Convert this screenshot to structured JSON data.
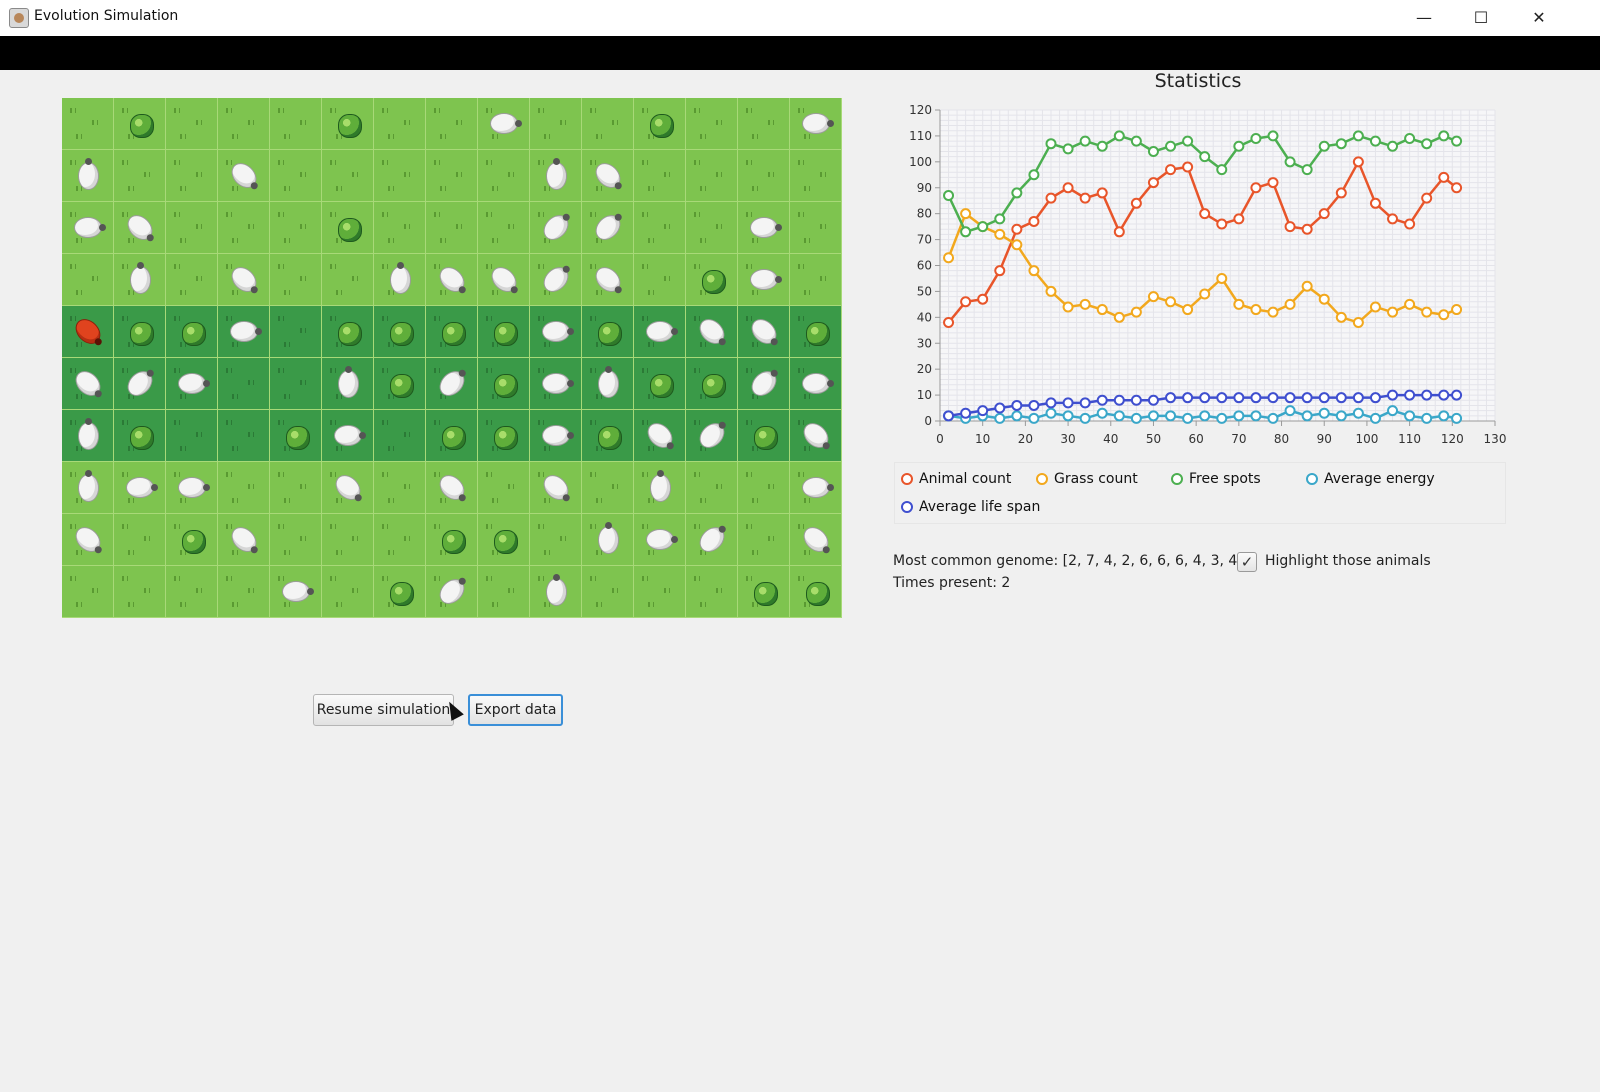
{
  "window": {
    "title": "Evolution Simulation",
    "minimize_glyph": "—",
    "maximize_glyph": "☐",
    "close_glyph": "✕",
    "icon": "app-icon"
  },
  "map": {
    "legend_note": "",
    "rows": [
      [
        "S",
        "B",
        "S",
        "S",
        "S",
        "B",
        "S",
        "S",
        "Sh",
        "S",
        "S",
        "B",
        "S",
        "S",
        "Sh"
      ],
      [
        "Sv",
        "S",
        "S",
        "Sd1",
        "S",
        "S",
        "S",
        "S",
        "S",
        "Sv",
        "Sd1",
        "S",
        "S",
        "S",
        "S"
      ],
      [
        "Sh",
        "Sd1",
        "S",
        "S",
        "S",
        "B",
        "S",
        "S",
        "S",
        "Sd2",
        "Sd2",
        "S",
        "S",
        "Sh",
        "S"
      ],
      [
        "S",
        "Sv",
        "S",
        "Sd1",
        "S",
        "S",
        "Sv",
        "Sd1",
        "Sd1",
        "Sd2",
        "Sd1",
        "S",
        "B",
        "Sh",
        "S"
      ],
      [
        "R",
        "B",
        "B",
        "Sh",
        "S",
        "B",
        "B",
        "B",
        "B",
        "Sh",
        "B",
        "Sh",
        "Sd1",
        "Sd1",
        "B"
      ],
      [
        "Sd1",
        "Sd2",
        "Sh",
        "S",
        "S",
        "Sv",
        "B",
        "Sd2",
        "B",
        "Sh",
        "Sv",
        "B",
        "B",
        "Sd2",
        "Sh"
      ],
      [
        "Sv",
        "B",
        "S",
        "S",
        "B",
        "Sh",
        "S",
        "B",
        "B",
        "Sh",
        "B",
        "Sd1",
        "Sd2",
        "B",
        "Sd1"
      ],
      [
        "Sv",
        "Sh",
        "Sh",
        "S",
        "S",
        "Sd1",
        "S",
        "Sd1",
        "S",
        "Sd1",
        "S",
        "Sv",
        "S",
        "S",
        "Sh"
      ],
      [
        "Sd1",
        "S",
        "B",
        "Sd1",
        "S",
        "S",
        "S",
        "B",
        "B",
        "S",
        "Sv",
        "Sh",
        "Sd2",
        "S",
        "Sd1"
      ],
      [
        "S",
        "S",
        "S",
        "S",
        "Sh",
        "S",
        "B",
        "Sd2",
        "S",
        "Sv",
        "S",
        "S",
        "S",
        "B",
        "B"
      ]
    ],
    "jungle_rows": [
      4,
      5,
      6
    ]
  },
  "stats": {
    "title": "Statistics",
    "legend": [
      {
        "label": "Animal count",
        "color": "#e8552a"
      },
      {
        "label": "Grass count",
        "color": "#f2a81d"
      },
      {
        "label": "Free spots",
        "color": "#4caf50"
      },
      {
        "label": "Average energy",
        "color": "#3aa7c9"
      },
      {
        "label": "Average life span",
        "color": "#3f4fcf"
      }
    ]
  },
  "chart_data": {
    "type": "line",
    "xlim": [
      0,
      130
    ],
    "ylim": [
      0,
      120
    ],
    "xticks": [
      0,
      10,
      20,
      30,
      40,
      50,
      60,
      70,
      80,
      90,
      100,
      110,
      120,
      130
    ],
    "yticks": [
      0,
      10,
      20,
      30,
      40,
      50,
      60,
      70,
      80,
      90,
      100,
      110,
      120
    ],
    "grid": true,
    "legend_position": "bottom",
    "x": [
      2,
      6,
      10,
      14,
      18,
      22,
      26,
      30,
      34,
      38,
      42,
      46,
      50,
      54,
      58,
      62,
      66,
      70,
      74,
      78,
      82,
      86,
      90,
      94,
      98,
      102,
      106,
      110,
      114,
      118,
      121
    ],
    "series": [
      {
        "name": "Animal count",
        "color": "#e8552a",
        "values": [
          38,
          46,
          47,
          58,
          74,
          77,
          86,
          90,
          86,
          88,
          73,
          84,
          92,
          97,
          98,
          80,
          76,
          78,
          90,
          92,
          75,
          74,
          80,
          88,
          100,
          84,
          78,
          76,
          86,
          94,
          90
        ]
      },
      {
        "name": "Grass count",
        "color": "#f2a81d",
        "values": [
          63,
          80,
          75,
          72,
          68,
          58,
          50,
          44,
          45,
          43,
          40,
          42,
          48,
          46,
          43,
          49,
          55,
          45,
          43,
          42,
          45,
          52,
          47,
          40,
          38,
          44,
          42,
          45,
          42,
          41,
          43
        ]
      },
      {
        "name": "Free spots",
        "color": "#4caf50",
        "values": [
          87,
          73,
          75,
          78,
          88,
          95,
          107,
          105,
          108,
          106,
          110,
          108,
          104,
          106,
          108,
          102,
          97,
          106,
          109,
          110,
          100,
          97,
          106,
          107,
          110,
          108,
          106,
          109,
          107,
          110,
          108
        ]
      },
      {
        "name": "Average energy",
        "color": "#3aa7c9",
        "values": [
          2,
          1,
          2,
          1,
          2,
          1,
          3,
          2,
          1,
          3,
          2,
          1,
          2,
          2,
          1,
          2,
          1,
          2,
          2,
          1,
          4,
          2,
          3,
          2,
          3,
          1,
          4,
          2,
          1,
          2,
          1
        ]
      },
      {
        "name": "Average life span",
        "color": "#3f4fcf",
        "values": [
          2,
          3,
          4,
          5,
          6,
          6,
          7,
          7,
          7,
          8,
          8,
          8,
          8,
          9,
          9,
          9,
          9,
          9,
          9,
          9,
          9,
          9,
          9,
          9,
          9,
          9,
          10,
          10,
          10,
          10,
          10
        ]
      }
    ]
  },
  "genome": {
    "label": "Most common genome: [2, 7, 4, 2, 6, 6, 6, 4, 3, 4]",
    "times": "Times present: 2",
    "highlight_label": "Highlight those animals",
    "highlight_checked": true,
    "check_glyph": "✓"
  },
  "buttons": {
    "resume": "Resume simulation",
    "export": "Export data"
  }
}
